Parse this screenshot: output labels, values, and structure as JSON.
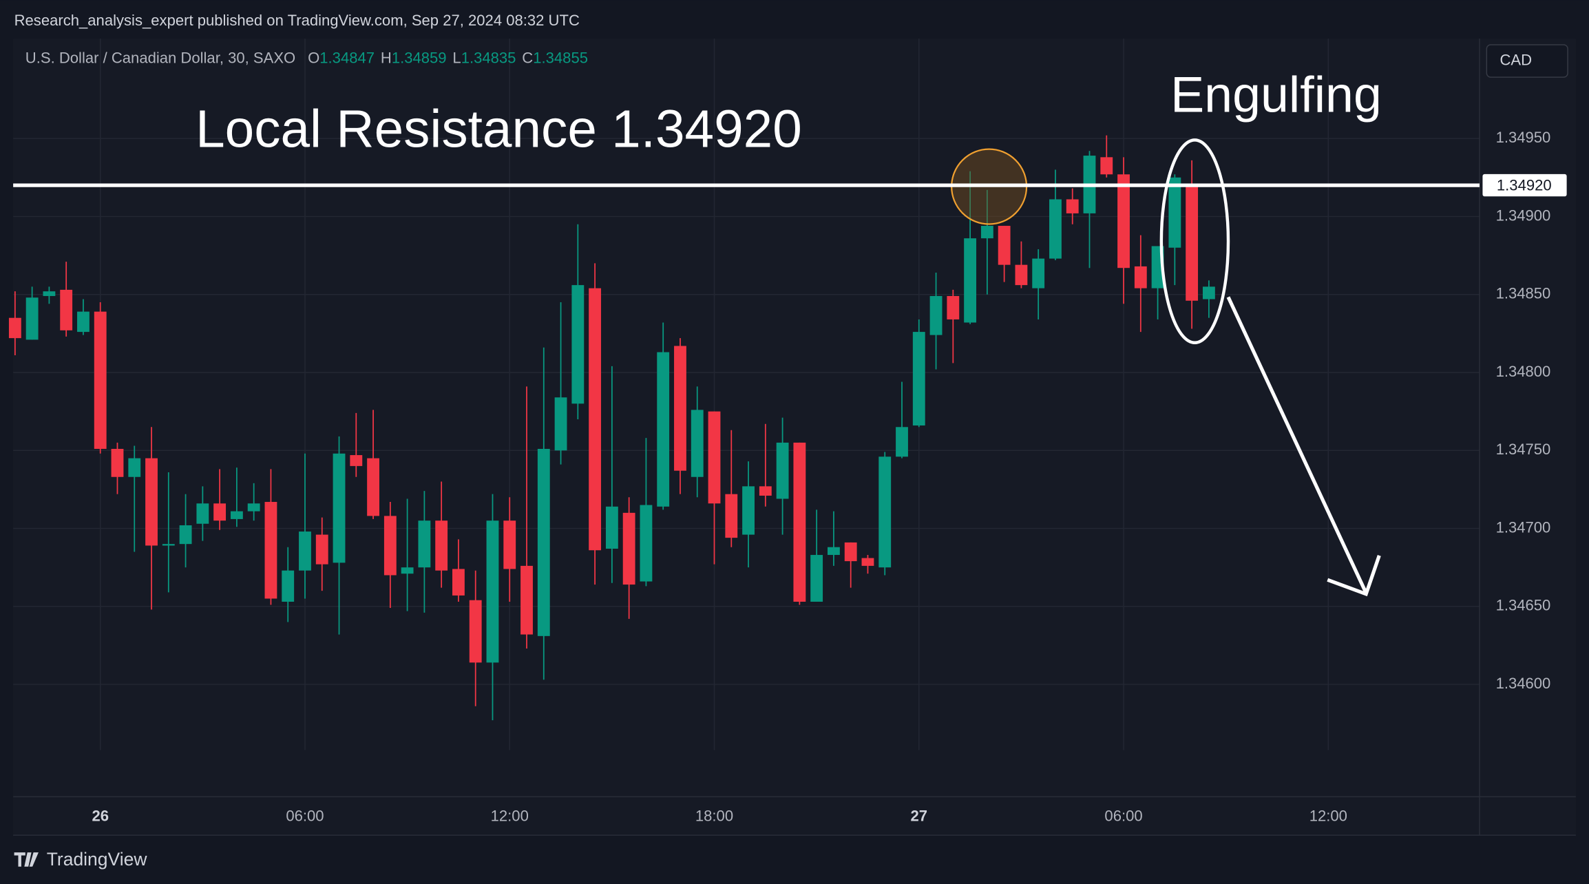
{
  "header": "Research_analysis_expert published on TradingView.com, Sep 27, 2024 08:32 UTC",
  "footer": {
    "brand": "TradingView"
  },
  "chart_data": {
    "type": "candlestick",
    "symbol": "U.S. Dollar / Canadian Dollar, 30, SAXO",
    "ohlc_labels": [
      "O",
      "H",
      "L",
      "C"
    ],
    "currency": "CAD",
    "annotations": [
      "Local Resistance 1.34920",
      "Engulfing"
    ],
    "hline": {
      "value": 1.3492,
      "label": "1.34920"
    },
    "up_color": "#089981",
    "down_color": "#f23645",
    "grid": true,
    "xlim": [
      -0.11,
      85.87
    ],
    "xticks": [
      {
        "value": 5,
        "label": "26"
      },
      {
        "value": 17,
        "label": "06:00"
      },
      {
        "value": 29,
        "label": "12:00"
      },
      {
        "value": 41,
        "label": "18:00"
      },
      {
        "value": 53,
        "label": "27"
      },
      {
        "value": 65,
        "label": "06:00"
      },
      {
        "value": 77,
        "label": "12:00"
      }
    ],
    "ylim": [
      1.34528,
      1.35014
    ],
    "yticks": [
      {
        "value": 1.346,
        "label": "1.34600"
      },
      {
        "value": 1.3465,
        "label": "1.34650"
      },
      {
        "value": 1.347,
        "label": "1.34700"
      },
      {
        "value": 1.3475,
        "label": "1.34750"
      },
      {
        "value": 1.348,
        "label": "1.34800"
      },
      {
        "value": 1.3485,
        "label": "1.34850"
      },
      {
        "value": 1.349,
        "label": "1.34900"
      },
      {
        "value": 1.3495,
        "label": "1.34950"
      }
    ],
    "open": [
      1.34835,
      1.34821,
      1.34849,
      1.34853,
      1.34826,
      1.34839,
      1.34751,
      1.34733,
      1.34745,
      1.34689,
      1.3469,
      1.34703,
      1.34716,
      1.34706,
      1.34711,
      1.34717,
      1.34653,
      1.34673,
      1.34696,
      1.34678,
      1.34747,
      1.34745,
      1.34708,
      1.34671,
      1.34675,
      1.34705,
      1.34674,
      1.34654,
      1.34614,
      1.34705,
      1.34676,
      1.34631,
      1.3475,
      1.3478,
      1.34854,
      1.34687,
      1.3471,
      1.34666,
      1.34714,
      1.34817,
      1.34733,
      1.34775,
      1.34722,
      1.34696,
      1.34727,
      1.34719,
      1.34755,
      1.34653,
      1.34683,
      1.34691,
      1.34681,
      1.34675,
      1.34746,
      1.34766,
      1.34824,
      1.34849,
      1.34832,
      1.34886,
      1.34894,
      1.34869,
      1.34854,
      1.34873,
      1.34911,
      1.34902,
      1.34938,
      1.34927,
      1.34868,
      1.34854,
      1.3488,
      1.3492,
      1.34847
    ],
    "high": [
      1.34852,
      1.34855,
      1.34855,
      1.34871,
      1.34847,
      1.34845,
      1.34755,
      1.34753,
      1.34765,
      1.34736,
      1.34722,
      1.34727,
      1.34738,
      1.34739,
      1.34729,
      1.34738,
      1.34688,
      1.34748,
      1.34707,
      1.34759,
      1.34774,
      1.34776,
      1.34717,
      1.34719,
      1.34724,
      1.3473,
      1.34693,
      1.34673,
      1.34722,
      1.3472,
      1.34791,
      1.34816,
      1.34845,
      1.34895,
      1.3487,
      1.34804,
      1.3472,
      1.34758,
      1.34832,
      1.34822,
      1.34791,
      1.34775,
      1.34763,
      1.34743,
      1.34767,
      1.34771,
      1.34755,
      1.34712,
      1.34711,
      1.34691,
      1.34683,
      1.34749,
      1.34794,
      1.34834,
      1.34864,
      1.34853,
      1.34929,
      1.34917,
      1.34894,
      1.34884,
      1.34879,
      1.3493,
      1.34918,
      1.34942,
      1.34952,
      1.34938,
      1.34888,
      1.34881,
      1.34927,
      1.34936,
      1.34859
    ],
    "low": [
      1.34811,
      1.34821,
      1.34844,
      1.34823,
      1.34824,
      1.34748,
      1.34722,
      1.34685,
      1.34648,
      1.34659,
      1.34675,
      1.34692,
      1.34699,
      1.34701,
      1.34705,
      1.34651,
      1.3464,
      1.34655,
      1.3466,
      1.34632,
      1.34733,
      1.34706,
      1.34649,
      1.34647,
      1.34646,
      1.34662,
      1.34653,
      1.34586,
      1.34577,
      1.34653,
      1.34623,
      1.34603,
      1.34741,
      1.3477,
      1.34664,
      1.34665,
      1.34642,
      1.34663,
      1.34712,
      1.34722,
      1.3472,
      1.34677,
      1.34688,
      1.34675,
      1.34714,
      1.34696,
      1.34651,
      1.34653,
      1.34676,
      1.34662,
      1.34671,
      1.3467,
      1.34745,
      1.34765,
      1.34802,
      1.34806,
      1.34831,
      1.3485,
      1.34858,
      1.34854,
      1.34834,
      1.34872,
      1.34895,
      1.34867,
      1.34925,
      1.34844,
      1.34826,
      1.34834,
      1.34856,
      1.34828,
      1.34835
    ],
    "close": [
      1.34822,
      1.34848,
      1.34852,
      1.34827,
      1.34839,
      1.34751,
      1.34733,
      1.34745,
      1.34689,
      1.3469,
      1.34702,
      1.34716,
      1.34705,
      1.34711,
      1.34716,
      1.34655,
      1.34673,
      1.34698,
      1.34677,
      1.34748,
      1.3474,
      1.34708,
      1.3467,
      1.34675,
      1.34705,
      1.34673,
      1.34657,
      1.34614,
      1.34705,
      1.34674,
      1.34632,
      1.34751,
      1.34784,
      1.34856,
      1.34686,
      1.34714,
      1.34664,
      1.34715,
      1.34813,
      1.34737,
      1.34776,
      1.34716,
      1.34694,
      1.34727,
      1.34721,
      1.34755,
      1.34653,
      1.34683,
      1.34688,
      1.34679,
      1.34676,
      1.34746,
      1.34765,
      1.34826,
      1.34849,
      1.34834,
      1.34886,
      1.34894,
      1.34869,
      1.34856,
      1.34873,
      1.34911,
      1.34902,
      1.34939,
      1.34927,
      1.34867,
      1.34854,
      1.34881,
      1.34925,
      1.34846,
      1.34855
    ]
  }
}
